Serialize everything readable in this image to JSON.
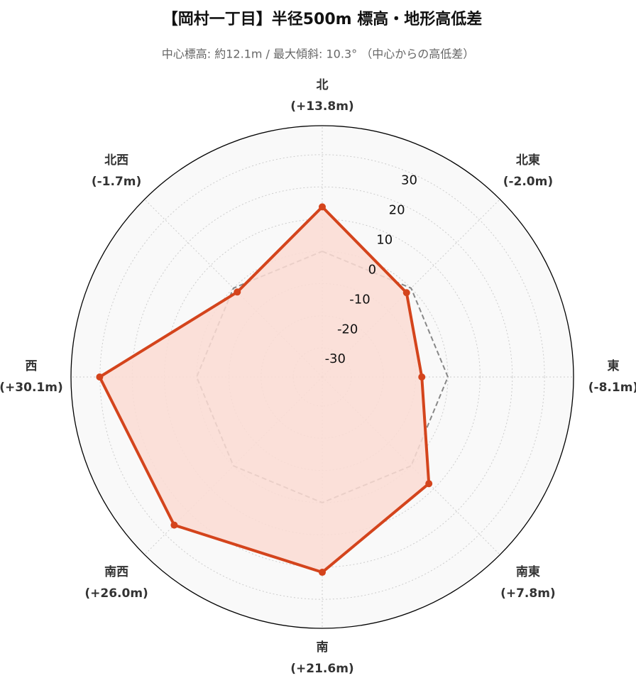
{
  "chart_data": {
    "type": "radar",
    "title": "【岡村一丁目】半径500m 標高・地形高低差",
    "subtitle": "中心標高: 約12.1m / 最大傾斜: 10.3° （中心からの高低差）",
    "categories": [
      "北",
      "北東",
      "東",
      "南東",
      "南",
      "南西",
      "西",
      "北西"
    ],
    "values": [
      13.8,
      -2.0,
      -8.1,
      7.8,
      21.6,
      26.0,
      30.1,
      -1.7
    ],
    "value_labels": [
      "(+13.8m)",
      "(-2.0m)",
      "(-8.1m)",
      "(+7.8m)",
      "(+21.6m)",
      "(+26.0m)",
      "(+30.1m)",
      "(-1.7m)"
    ],
    "color": "#d4441c",
    "fill_color": "#fcdcd4",
    "ylim": [
      -39,
      39
    ],
    "yticks": [
      -30,
      -20,
      -10,
      0,
      10,
      20,
      30
    ],
    "grid": true
  }
}
